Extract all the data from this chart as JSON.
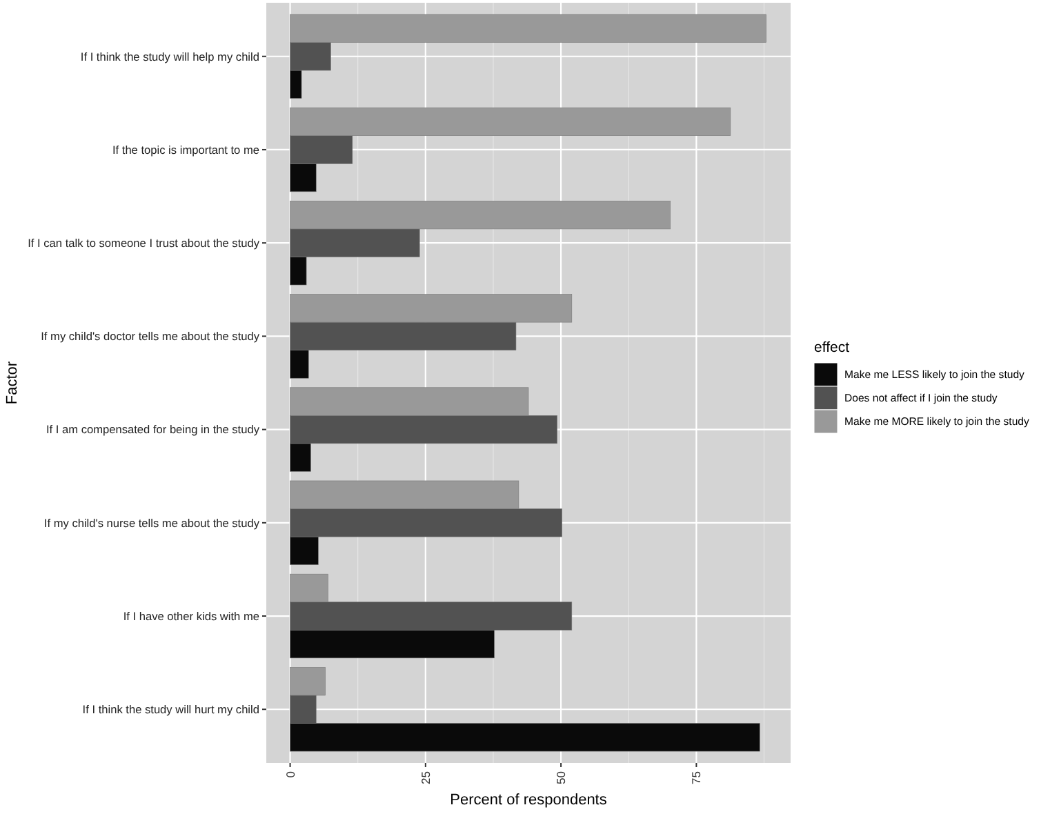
{
  "chart_data": {
    "type": "bar",
    "orientation": "horizontal",
    "xlabel": "Percent of respondents",
    "ylabel": "Factor",
    "legend_title": "effect",
    "categories": [
      "If I think the study will help my child",
      "If the topic is important to me",
      "If I can talk to someone I trust about the study",
      "If my child's doctor tells me about the study",
      "If I am compensated for being in the study",
      "If my child's nurse tells me about the study",
      "If I have other kids with me",
      "If I think the study will hurt my child"
    ],
    "series": [
      {
        "name": "Make me LESS likely to join the study",
        "color": "#0a0a0a",
        "values": [
          2.1,
          4.8,
          3.0,
          3.4,
          3.8,
          5.2,
          37.7,
          86.7
        ]
      },
      {
        "name": "Does not affect if I join the study",
        "color": "#525252",
        "values": [
          7.5,
          11.5,
          23.9,
          41.7,
          49.3,
          50.2,
          52.0,
          4.8
        ]
      },
      {
        "name": "Make me MORE likely to join the study",
        "color": "#999999",
        "values": [
          87.9,
          81.3,
          70.2,
          52.0,
          44.0,
          42.2,
          7.0,
          6.5
        ]
      }
    ],
    "xlim": [
      -4.4,
      92.4
    ],
    "xticks": [
      0,
      25,
      50,
      75
    ],
    "grid": true,
    "legend": "right"
  }
}
